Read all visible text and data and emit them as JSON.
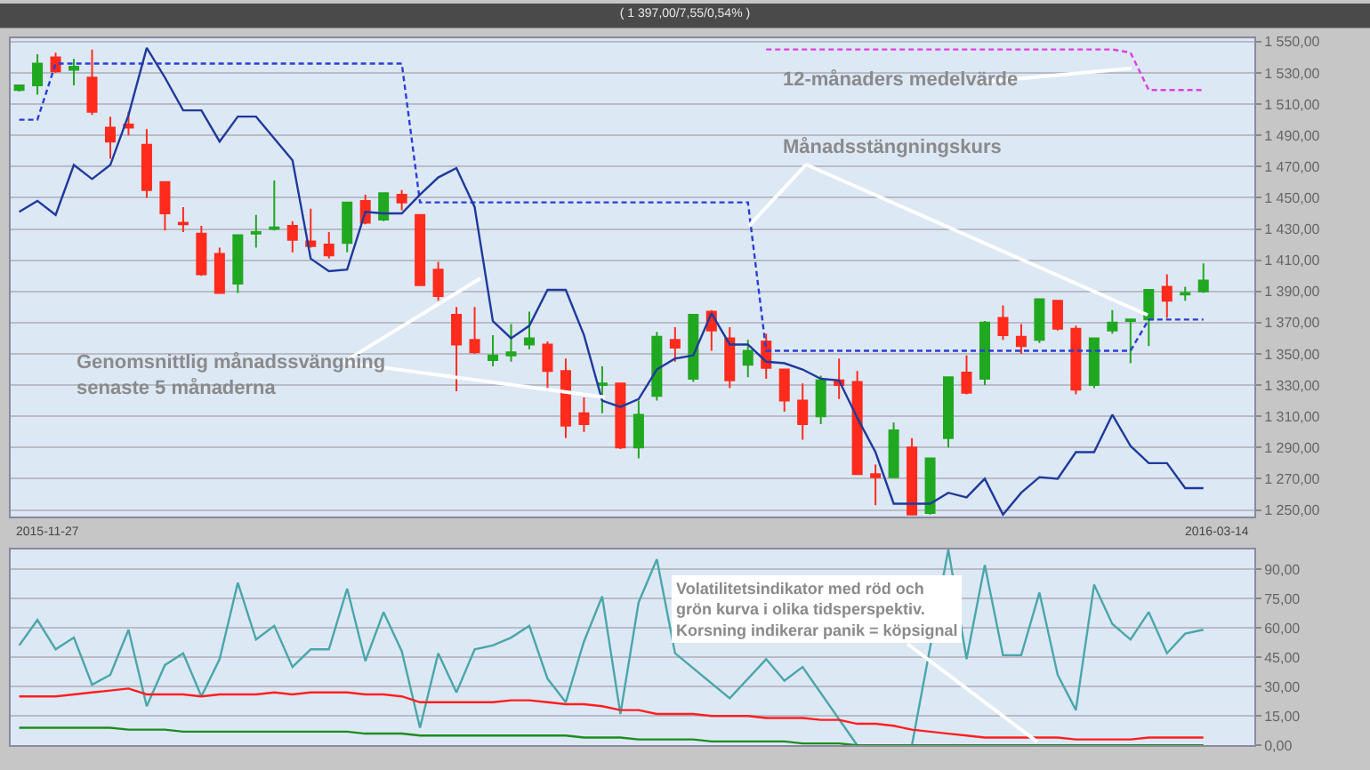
{
  "chart_data": [
    {
      "type": "candlestick",
      "title": "( 1 397,00/7,55/0,54% )",
      "categories": [
        null,
        null,
        null,
        null,
        null,
        null,
        null,
        null,
        null,
        null,
        null,
        null,
        null,
        null,
        null,
        null,
        null,
        null,
        null,
        null,
        null,
        null,
        null,
        null,
        null,
        null,
        null,
        null,
        null,
        null,
        null,
        null,
        null,
        null,
        null,
        null,
        null,
        null,
        null,
        null,
        null,
        null,
        null,
        null,
        null,
        null,
        null,
        null,
        null,
        null,
        null,
        null,
        null,
        null,
        null,
        null,
        null,
        null,
        null,
        null,
        null,
        null,
        null,
        null,
        null,
        null
      ],
      "ohlc": [
        [
          1519,
          1522,
          1518,
          1522
        ],
        [
          1522,
          1542,
          1516,
          1536
        ],
        [
          1540,
          1543,
          1530,
          1531
        ],
        [
          1532,
          1539,
          1522,
          1534
        ],
        [
          1527,
          1545,
          1503,
          1505
        ],
        [
          1495,
          1502,
          1475,
          1486
        ],
        [
          1497,
          1505,
          1490,
          1495
        ],
        [
          1484,
          1494,
          1450,
          1455
        ],
        [
          1460,
          1460,
          1429,
          1440
        ],
        [
          1434,
          1444,
          1428,
          1433
        ],
        [
          1427,
          1432,
          1400,
          1401
        ],
        [
          1414,
          1418,
          1389,
          1389
        ],
        [
          1395,
          1426,
          1389,
          1426
        ],
        [
          1427,
          1439,
          1418,
          1428
        ],
        [
          1430,
          1461,
          1429,
          1431
        ],
        [
          1432,
          1435,
          1415,
          1423
        ],
        [
          1422,
          1443,
          1418,
          1419
        ],
        [
          1420,
          1428,
          1411,
          1413
        ],
        [
          1421,
          1447,
          1415,
          1447
        ],
        [
          1448,
          1452,
          1433,
          1434
        ],
        [
          1436,
          1453,
          1435,
          1453
        ],
        [
          1452,
          1455,
          1442,
          1447
        ],
        [
          1439,
          1439,
          1394,
          1394
        ],
        [
          1404,
          1409,
          1384,
          1387
        ],
        [
          1375,
          1380,
          1326,
          1356
        ],
        [
          1359,
          1380,
          1350,
          1351
        ],
        [
          1346,
          1362,
          1342,
          1349
        ],
        [
          1349,
          1369,
          1345,
          1351
        ],
        [
          1356,
          1377,
          1353,
          1360
        ],
        [
          1356,
          1358,
          1328,
          1339
        ],
        [
          1339,
          1347,
          1296,
          1304
        ],
        [
          1312,
          1322,
          1300,
          1305
        ],
        [
          1330,
          1342,
          1312,
          1331
        ],
        [
          1331,
          1331,
          1289,
          1290
        ],
        [
          1290,
          1320,
          1283,
          1311
        ],
        [
          1323,
          1364,
          1320,
          1361
        ],
        [
          1359,
          1367,
          1345,
          1354
        ],
        [
          1334,
          1375,
          1332,
          1375
        ],
        [
          1377,
          1378,
          1352,
          1365
        ],
        [
          1360,
          1367,
          1328,
          1333
        ],
        [
          1343,
          1359,
          1335,
          1352
        ],
        [
          1358,
          1363,
          1334,
          1341
        ],
        [
          1340,
          1340,
          1313,
          1320
        ],
        [
          1320,
          1331,
          1295,
          1305
        ],
        [
          1310,
          1336,
          1305,
          1333
        ],
        [
          1333,
          1347,
          1321,
          1330
        ],
        [
          1332,
          1339,
          1273,
          1273
        ],
        [
          1273,
          1279,
          1253,
          1271
        ],
        [
          1271,
          1306,
          1271,
          1301
        ],
        [
          1290,
          1296,
          1247,
          1247
        ],
        [
          1248,
          1283,
          1247,
          1283
        ],
        [
          1296,
          1335,
          1290,
          1335
        ],
        [
          1338,
          1349,
          1324,
          1325
        ],
        [
          1334,
          1371,
          1330,
          1370
        ],
        [
          1373,
          1381,
          1359,
          1362
        ],
        [
          1361,
          1369,
          1350,
          1355
        ],
        [
          1359,
          1385,
          1357,
          1385
        ],
        [
          1384,
          1384,
          1365,
          1366
        ],
        [
          1366,
          1368,
          1324,
          1327
        ],
        [
          1330,
          1360,
          1328,
          1360
        ],
        [
          1365,
          1378,
          1363,
          1370
        ],
        [
          1371,
          1372,
          1344,
          1372
        ],
        [
          1372,
          1391,
          1355,
          1391
        ],
        [
          1393,
          1401,
          1373,
          1384
        ],
        [
          1388,
          1393,
          1384,
          1389
        ],
        [
          1390,
          1408,
          1389,
          1397
        ]
      ],
      "colors": [
        "#21a821",
        "#21a821",
        "#ff2b1c",
        "#21a821",
        "#ff2b1c",
        "#ff2b1c",
        "#ff2b1c",
        "#ff2b1c",
        "#ff2b1c",
        "#ff2b1c",
        "#ff2b1c",
        "#ff2b1c",
        "#21a821",
        "#21a821",
        "#21a821",
        "#ff2b1c",
        "#ff2b1c",
        "#ff2b1c",
        "#21a821",
        "#ff2b1c",
        "#21a821",
        "#ff2b1c",
        "#ff2b1c",
        "#ff2b1c",
        "#ff2b1c",
        "#ff2b1c",
        "#21a821",
        "#21a821",
        "#21a821",
        "#ff2b1c",
        "#ff2b1c",
        "#ff2b1c",
        "#21a821",
        "#ff2b1c",
        "#21a821",
        "#21a821",
        "#ff2b1c",
        "#21a821",
        "#ff2b1c",
        "#ff2b1c",
        "#21a821",
        "#ff2b1c",
        "#ff2b1c",
        "#ff2b1c",
        "#21a821",
        "#ff2b1c",
        "#ff2b1c",
        "#ff2b1c",
        "#21a821",
        "#ff2b1c",
        "#21a821",
        "#21a821",
        "#ff2b1c",
        "#21a821",
        "#ff2b1c",
        "#ff2b1c",
        "#21a821",
        "#ff2b1c",
        "#ff2b1c",
        "#21a821",
        "#21a821",
        "#21a821",
        "#21a821",
        "#ff2b1c",
        "#21a821",
        "#21a821"
      ],
      "series": [
        {
          "type": "line",
          "color": "#2a3ed6",
          "line_style": "dashed",
          "values": [
            1500,
            1500,
            1536,
            1536,
            1536,
            1536,
            1536,
            1536,
            1536,
            1536,
            1536,
            1536,
            1536,
            1536,
            1536,
            1536,
            1536,
            1536,
            1536,
            1536,
            1536,
            1536,
            1447,
            1447,
            1447,
            1447,
            1447,
            1447,
            1447,
            1447,
            1447,
            1447,
            1447,
            1447,
            1447,
            1447,
            1447,
            1447,
            1447,
            1447,
            1447,
            1352,
            1352,
            1352,
            1352,
            1352,
            1352,
            1352,
            1352,
            1352,
            1352,
            1352,
            1352,
            1352,
            1352,
            1352,
            1352,
            1352,
            1352,
            1352,
            1352,
            1352,
            1372,
            1372,
            1372,
            1372
          ]
        },
        {
          "type": "line",
          "color": "#e03ee0",
          "line_style": "dashed",
          "values": [
            null,
            null,
            null,
            null,
            null,
            null,
            null,
            null,
            null,
            null,
            null,
            null,
            null,
            null,
            null,
            null,
            null,
            null,
            null,
            null,
            null,
            null,
            null,
            null,
            null,
            null,
            null,
            null,
            null,
            null,
            null,
            null,
            null,
            null,
            null,
            null,
            null,
            null,
            null,
            null,
            null,
            1545,
            1545,
            1545,
            1545,
            1545,
            1545,
            1545,
            1545,
            1545,
            1545,
            1545,
            1545,
            1545,
            1545,
            1545,
            1545,
            1545,
            1545,
            1545,
            1545,
            1543,
            1519,
            1519,
            1519,
            1519
          ]
        },
        {
          "type": "line",
          "color": "#1f3a9c",
          "line_style": "solid",
          "values": [
            1441,
            1448,
            1439,
            1471,
            1462,
            1471,
            1503,
            1546,
            1527,
            1506,
            1506,
            1486,
            1502,
            1502,
            1488,
            1474,
            1411,
            1403,
            1404,
            1441,
            1440,
            1440,
            1452,
            1463,
            1469,
            1444,
            1371,
            1360,
            1368,
            1391,
            1391,
            1362,
            1320,
            1316,
            1321,
            1340,
            1347,
            1349,
            1376,
            1356,
            1356,
            1345,
            1344,
            1340,
            1334,
            1333,
            1309,
            1287,
            1254,
            1254,
            1254,
            1261,
            1258,
            1270,
            1247,
            1261,
            1271,
            1270,
            1287,
            1287,
            1311,
            1291,
            1280,
            1280,
            1264,
            1264
          ]
        }
      ],
      "ylim": [
        1246,
        1552
      ],
      "yticks": [
        {
          "value": 1250,
          "label": "1 250,00"
        },
        {
          "value": 1270,
          "label": "1 270,00"
        },
        {
          "value": 1290,
          "label": "1 290,00"
        },
        {
          "value": 1310,
          "label": "1 310,00"
        },
        {
          "value": 1330,
          "label": "1 330,00"
        },
        {
          "value": 1350,
          "label": "1 350,00"
        },
        {
          "value": 1370,
          "label": "1 370,00"
        },
        {
          "value": 1390,
          "label": "1 390,00"
        },
        {
          "value": 1410,
          "label": "1 410,00"
        },
        {
          "value": 1430,
          "label": "1 430,00"
        },
        {
          "value": 1450,
          "label": "1 450,00"
        },
        {
          "value": 1470,
          "label": "1 470,00"
        },
        {
          "value": 1490,
          "label": "1 490,00"
        },
        {
          "value": 1510,
          "label": "1 510,00"
        },
        {
          "value": 1530,
          "label": "1 530,00"
        },
        {
          "value": 1550,
          "label": "1 550,00"
        }
      ],
      "grid": "y",
      "annotations": [
        "Genomsnittlig månadssvängning\nsenaste 5 månaderna",
        "Månadsstängningskurs",
        "12-månaders medelvärde",
        "2015-11-27",
        "2016-03-14"
      ]
    },
    {
      "type": "line",
      "categories": [
        null,
        null,
        null,
        null,
        null,
        null,
        null,
        null,
        null,
        null,
        null,
        null,
        null,
        null,
        null,
        null,
        null,
        null,
        null,
        null,
        null,
        null,
        null,
        null,
        null,
        null,
        null,
        null,
        null,
        null,
        null,
        null,
        null,
        null,
        null,
        null,
        null,
        null,
        null,
        null,
        null,
        null,
        null,
        null,
        null,
        null,
        null,
        null,
        null,
        null,
        null,
        null,
        null,
        null,
        null,
        null,
        null,
        null,
        null,
        null,
        null,
        null,
        null,
        null,
        null,
        null
      ],
      "series": [
        {
          "color": "#4aa6aa",
          "values": [
            51,
            64,
            49,
            55,
            31,
            36,
            59,
            20,
            41,
            47,
            25,
            44,
            83,
            54,
            61,
            40,
            49,
            49,
            80,
            43,
            68,
            48,
            9,
            47,
            27,
            49,
            51,
            55,
            61,
            34,
            22,
            53,
            76,
            16,
            73,
            95,
            47,
            null,
            null,
            24,
            null,
            44,
            33,
            40,
            null,
            null,
            0,
            null,
            null,
            0,
            null,
            100,
            44,
            92,
            46,
            46,
            78,
            36,
            18,
            82,
            62,
            54,
            68,
            47,
            57,
            59
          ]
        },
        {
          "color": "#ff1f1f",
          "values": [
            25,
            25,
            25,
            26,
            27,
            28,
            29,
            26,
            26,
            26,
            25,
            26,
            26,
            26,
            27,
            26,
            27,
            27,
            27,
            26,
            26,
            25,
            22,
            22,
            22,
            22,
            22,
            23,
            23,
            22,
            21,
            21,
            20,
            18,
            18,
            16,
            16,
            16,
            15,
            15,
            15,
            14,
            14,
            14,
            13,
            13,
            11,
            11,
            10,
            8,
            7,
            6,
            5,
            4,
            4,
            4,
            4,
            4,
            3,
            3,
            3,
            3,
            4,
            4,
            4,
            4
          ]
        },
        {
          "color": "#1e8c1e",
          "values": [
            9,
            9,
            9,
            9,
            9,
            9,
            8,
            8,
            8,
            7,
            7,
            7,
            7,
            7,
            7,
            7,
            7,
            7,
            7,
            6,
            6,
            6,
            5,
            5,
            5,
            5,
            5,
            5,
            5,
            5,
            5,
            4,
            4,
            4,
            3,
            3,
            3,
            3,
            2,
            2,
            2,
            2,
            2,
            1,
            1,
            1,
            0,
            0,
            0,
            0,
            0,
            0,
            0,
            0,
            0,
            0,
            0,
            0,
            0,
            0,
            0,
            0,
            0,
            0,
            0,
            0
          ]
        }
      ],
      "ylim": [
        0,
        100
      ],
      "yticks": [
        {
          "value": 0,
          "label": "0,00"
        },
        {
          "value": 15,
          "label": "15,00"
        },
        {
          "value": 30,
          "label": "30,00"
        },
        {
          "value": 45,
          "label": "45,00"
        },
        {
          "value": 60,
          "label": "60,00"
        },
        {
          "value": 75,
          "label": "75,00"
        },
        {
          "value": 90,
          "label": "90,00"
        }
      ],
      "grid": "y",
      "annotations": [
        "Volatilitetsindikator med röd och\ngrön kurva i olika tidsperspektiv.\nKorsning indikerar panik = köpsignal"
      ]
    }
  ]
}
